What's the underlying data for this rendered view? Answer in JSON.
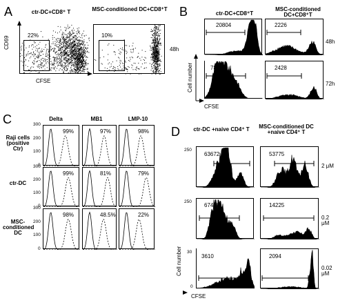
{
  "panels": {
    "A": {
      "letter": "A",
      "col_headers": [
        "ctr-DC+CD8⁺ T",
        "MSC-conditioned DC+CD8⁺T"
      ],
      "ylabel": "CD69",
      "xlabel": "CFSE",
      "gate_percents": [
        "22%",
        "10%"
      ],
      "time": "48h"
    },
    "B": {
      "letter": "B",
      "col_headers": [
        "ctr-DC+CD8⁺T",
        "MSC-conditioned DC+CD8⁺T"
      ],
      "ylabel": "Cell number",
      "xlabel": "CFSE",
      "rows": [
        {
          "time": "48h",
          "values": [
            "20804",
            "2226"
          ]
        },
        {
          "time": "72h",
          "values": [
            "78110",
            "2428"
          ]
        }
      ]
    },
    "C": {
      "letter": "C",
      "col_headers": [
        "Delta",
        "MB1",
        "LMP-10"
      ],
      "row_labels": [
        "Raji cells (positive Ctr)",
        "ctr-DC",
        "MSC-conditioned DC"
      ],
      "yticks": [
        "0",
        "100",
        "200",
        "300"
      ],
      "percents": [
        [
          "99%",
          "97%",
          "98%"
        ],
        [
          "99%",
          "81%",
          "79%"
        ],
        [
          "98%",
          "48.5%",
          "22%"
        ]
      ]
    },
    "D": {
      "letter": "D",
      "col_headers": [
        "ctr-DC +naive CD4⁺ T",
        "MSC-conditioned DC +naive CD4⁺ T"
      ],
      "ylabel": "Cell number",
      "xlabel": "CFSE",
      "rows": [
        {
          "conc": "2 μM",
          "ymax": "250",
          "values": [
            "63672",
            "53775"
          ]
        },
        {
          "conc": "0.2 μM",
          "ymax": "250",
          "values": [
            "67448",
            "14225"
          ]
        },
        {
          "conc": "0.02 μM",
          "ymax": "30",
          "values": [
            "3610",
            "2094"
          ]
        }
      ]
    }
  },
  "chart_data": [
    {
      "type": "scatter",
      "panel": "A",
      "xlabel": "CFSE",
      "ylabel": "CD69",
      "series": [
        {
          "name": "ctr-DC+CD8⁺ T",
          "gated_percent": 22
        },
        {
          "name": "MSC-conditioned DC+CD8⁺T",
          "gated_percent": 10
        }
      ]
    },
    {
      "type": "area",
      "panel": "B",
      "xlabel": "CFSE",
      "ylabel": "Cell number",
      "categories": [
        "48h",
        "72h"
      ],
      "series": [
        {
          "name": "ctr-DC+CD8⁺T",
          "values": [
            20804,
            78110
          ]
        },
        {
          "name": "MSC-conditioned DC+CD8⁺T",
          "values": [
            2226,
            2428
          ]
        }
      ]
    },
    {
      "type": "line",
      "panel": "C",
      "ylim": [
        0,
        300
      ],
      "categories": [
        "Delta",
        "MB1",
        "LMP-10"
      ],
      "series": [
        {
          "name": "Raji cells (positive Ctr)",
          "values": [
            99,
            97,
            98
          ]
        },
        {
          "name": "ctr-DC",
          "values": [
            99,
            81,
            79
          ]
        },
        {
          "name": "MSC-conditioned DC",
          "values": [
            98,
            48.5,
            22
          ]
        }
      ]
    },
    {
      "type": "area",
      "panel": "D",
      "xlabel": "CFSE",
      "ylabel": "Cell number",
      "categories": [
        "2 μM",
        "0.2 μM",
        "0.02 μM"
      ],
      "series": [
        {
          "name": "ctr-DC +naive CD4⁺ T",
          "values": [
            63672,
            67448,
            3610
          ]
        },
        {
          "name": "MSC-conditioned DC +naive CD4⁺ T",
          "values": [
            53775,
            14225,
            2094
          ]
        }
      ]
    }
  ]
}
